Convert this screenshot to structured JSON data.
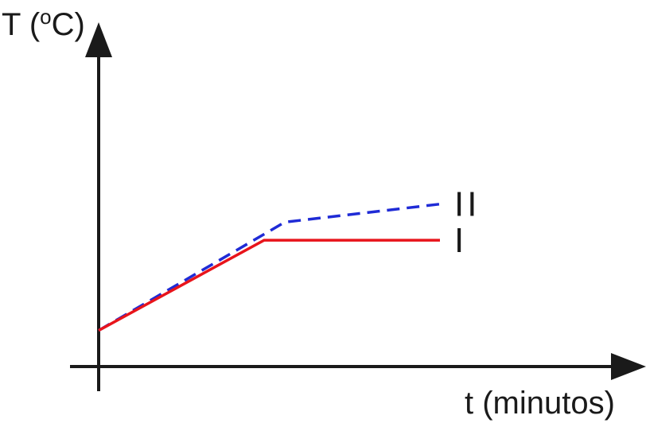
{
  "chart_data": {
    "type": "line",
    "title": "",
    "ylabel_parts": {
      "prefix": "T (",
      "sup": "o",
      "suffix": "C)"
    },
    "xlabel": "t (minutos)",
    "xlim": [
      0,
      10
    ],
    "ylim": [
      0,
      10
    ],
    "grid": false,
    "series": [
      {
        "name": "I",
        "color": "#e8141b",
        "style": "solid",
        "x": [
          0,
          3.2,
          6.6
        ],
        "y": [
          1,
          3.5,
          3.5
        ]
      },
      {
        "name": "II",
        "color": "#1f2bd6",
        "style": "dashed",
        "x": [
          0,
          3.6,
          6.6
        ],
        "y": [
          1,
          4.0,
          4.5
        ]
      }
    ]
  }
}
